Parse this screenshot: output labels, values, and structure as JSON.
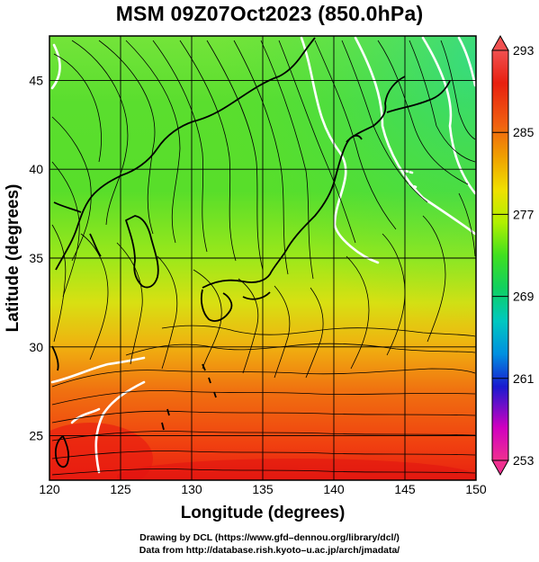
{
  "title": "MSM 09Z07Oct2023 (850.0hPa)",
  "axes": {
    "xlabel": "Longitude (degrees)",
    "ylabel": "Latitude  (degrees)",
    "x_ticks": [
      "120",
      "125",
      "130",
      "135",
      "140",
      "145",
      "150"
    ],
    "y_ticks": [
      "25",
      "30",
      "35",
      "40",
      "45"
    ],
    "x_range": [
      120,
      150
    ],
    "y_range": [
      22.5,
      47.5
    ]
  },
  "colorbar": {
    "ticks": [
      "293",
      "285",
      "277",
      "269",
      "261",
      "253"
    ],
    "range": [
      253,
      293
    ],
    "colors": [
      "#f03090",
      "#d000c0",
      "#1a1ad0",
      "#0090e0",
      "#00c8c0",
      "#10d060",
      "#40e020",
      "#b0f000",
      "#f0e000",
      "#f0a000",
      "#f06010",
      "#e02010",
      "#f05050"
    ]
  },
  "credits": {
    "line1": "Drawing by DCL (https://www.gfd–dennou.org/library/dcl/)",
    "line2": "Data from http://database.rish.kyoto–u.ac.jp/arch/jmadata/"
  }
}
